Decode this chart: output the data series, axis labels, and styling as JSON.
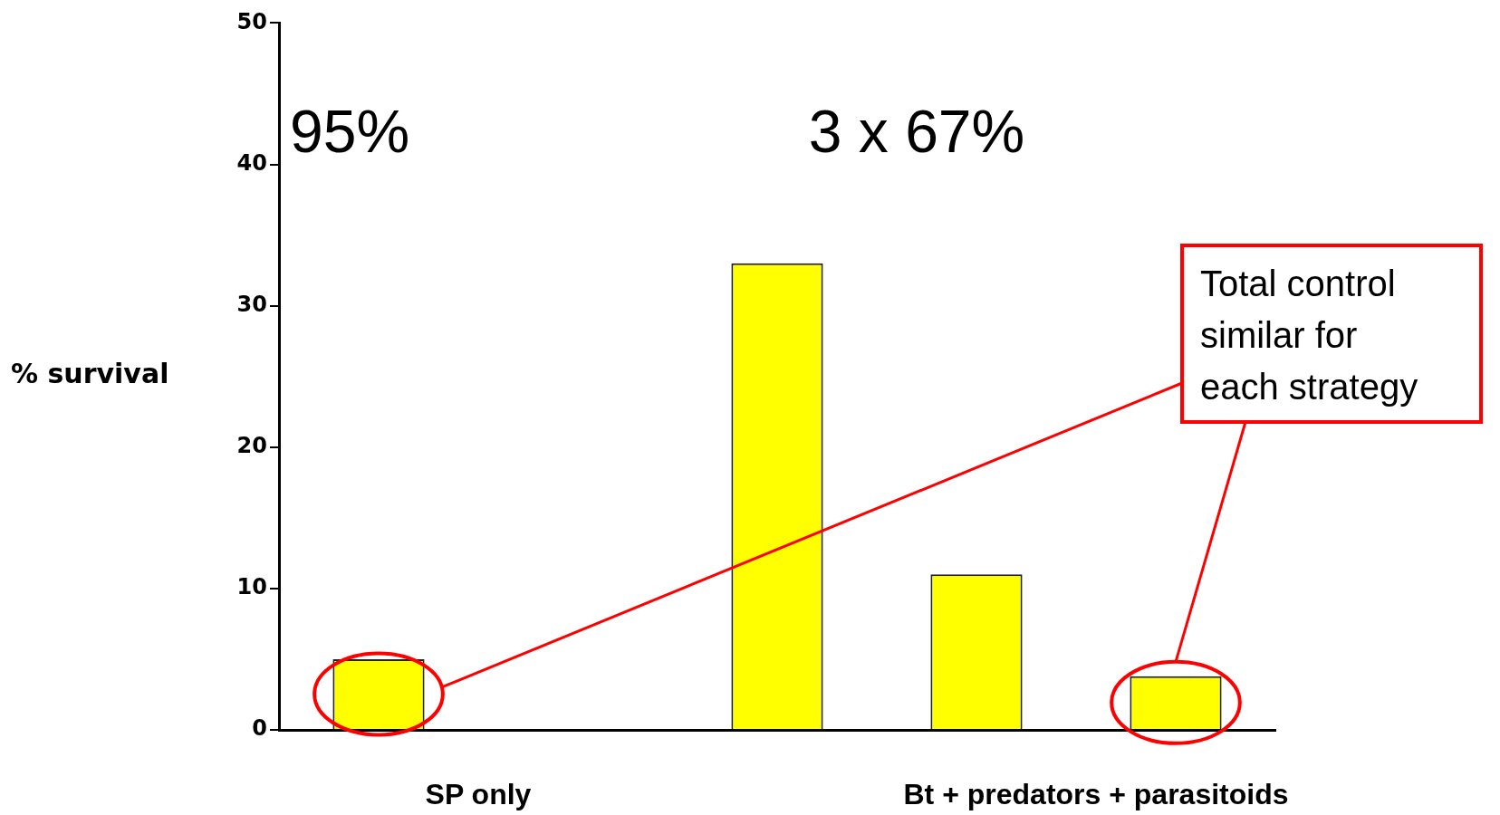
{
  "chart_data": {
    "type": "bar",
    "ylabel": "% survival",
    "categories": [
      null,
      null,
      null,
      null,
      null
    ],
    "values": [
      5,
      null,
      33,
      11,
      3.8
    ],
    "color": "#ffff00",
    "ylim": [
      0,
      50
    ],
    "yticks": [
      0,
      10,
      20,
      30,
      40,
      50
    ],
    "annotations": [
      "95%",
      "3 x 67%",
      "SP only",
      "Bt + predators + parasitoids",
      "Total control similar for each strategy"
    ]
  }
}
